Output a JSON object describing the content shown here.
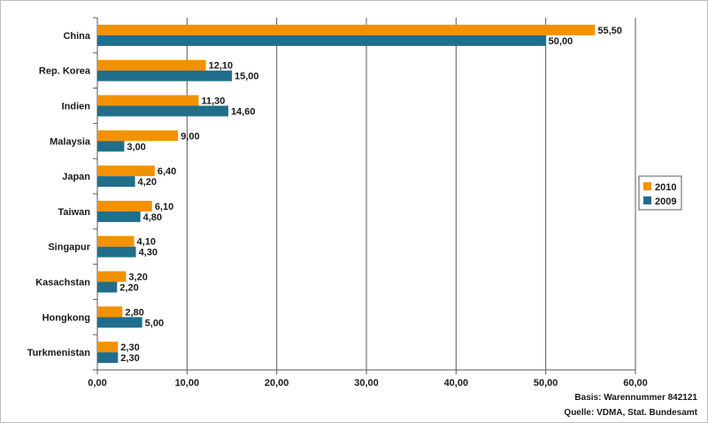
{
  "chart_data": {
    "type": "bar",
    "orientation": "horizontal",
    "categories": [
      "China",
      "Rep. Korea",
      "Indien",
      "Malaysia",
      "Japan",
      "Taiwan",
      "Singapur",
      "Kasachstan",
      "Hongkong",
      "Turkmenistan"
    ],
    "series": [
      {
        "name": "2010",
        "color": "#f39200",
        "values": [
          55.5,
          12.1,
          11.3,
          9.0,
          6.4,
          6.1,
          4.1,
          3.2,
          2.8,
          2.3
        ],
        "labels": [
          "55,50",
          "12,10",
          "11,30",
          "9,00",
          "6,40",
          "6,10",
          "4,10",
          "3,20",
          "2,80",
          "2,30"
        ]
      },
      {
        "name": "2009",
        "color": "#1f6e8c",
        "values": [
          50.0,
          15.0,
          14.6,
          3.0,
          4.2,
          4.8,
          4.3,
          2.2,
          5.0,
          2.3
        ],
        "labels": [
          "50,00",
          "15,00",
          "14,60",
          "3,00",
          "4,20",
          "4,80",
          "4,30",
          "2,20",
          "5,00",
          "2,30"
        ]
      }
    ],
    "xlim": [
      0,
      60
    ],
    "xticks": [
      0,
      10,
      20,
      30,
      40,
      50,
      60
    ],
    "xtick_labels": [
      "0,00",
      "10,00",
      "20,00",
      "30,00",
      "40,00",
      "50,00",
      "60,00"
    ],
    "grid": "vertical",
    "legend": "right",
    "title": "",
    "xlabel": "",
    "ylabel": ""
  },
  "notes": {
    "basis": "Basis: Warennummer 842121",
    "source": "Quelle: VDMA, Stat. Bundesamt"
  }
}
